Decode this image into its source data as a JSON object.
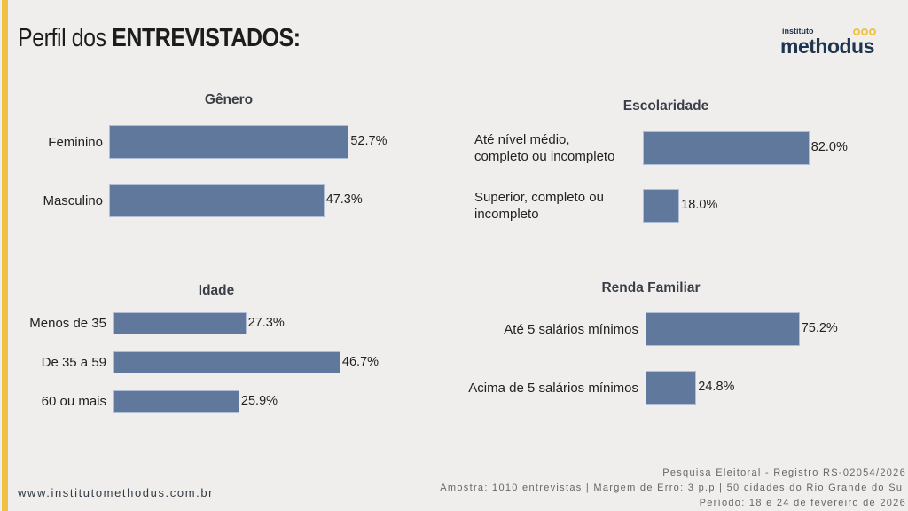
{
  "header": {
    "title_light": "Perfil dos",
    "title_bold": "ENTREVISTADOS:",
    "logo_small": "instituto",
    "logo_main": "methodus"
  },
  "colors": {
    "accent": "#f0c244",
    "bar": "#5f789c",
    "background": "#efeeec",
    "logo": "#1e3550"
  },
  "chart_data": [
    {
      "id": "genero",
      "type": "bar",
      "orientation": "horizontal",
      "title": "Gênero",
      "categories": [
        "Feminino",
        "Masculino"
      ],
      "values": [
        52.7,
        47.3
      ],
      "labels": [
        "52.7%",
        "47.3%"
      ],
      "unit": "%"
    },
    {
      "id": "escolaridade",
      "type": "bar",
      "orientation": "horizontal",
      "title": "Escolaridade",
      "categories": [
        "Até nível médio,\ncompleto ou incompleto",
        "Superior, completo ou\nincompleto"
      ],
      "values": [
        82.0,
        18.0
      ],
      "labels": [
        "82.0%",
        "18.0%"
      ],
      "unit": "%"
    },
    {
      "id": "idade",
      "type": "bar",
      "orientation": "horizontal",
      "title": "Idade",
      "categories": [
        "Menos de 35",
        "De 35 a 59",
        "60 ou mais"
      ],
      "values": [
        27.3,
        46.7,
        25.9
      ],
      "labels": [
        "27.3%",
        "46.7%",
        "25.9%"
      ],
      "unit": "%"
    },
    {
      "id": "renda",
      "type": "bar",
      "orientation": "horizontal",
      "title": "Renda Familiar",
      "categories": [
        "Até 5 salários mínimos",
        "Acima de 5 salários mínimos"
      ],
      "values": [
        75.2,
        24.8
      ],
      "labels": [
        "75.2%",
        "24.8%"
      ],
      "unit": "%"
    }
  ],
  "footer": {
    "website": "www.institutomethodus.com.br",
    "lines": [
      "Pesquisa Eleitoral - Registro RS-02054/2026",
      "Amostra: 1010 entrevistas | Margem de Erro: 3 p.p | 50 cidades do Rio Grande do Sul",
      "Período: 18 e 24 de fevereiro de 2026"
    ]
  }
}
